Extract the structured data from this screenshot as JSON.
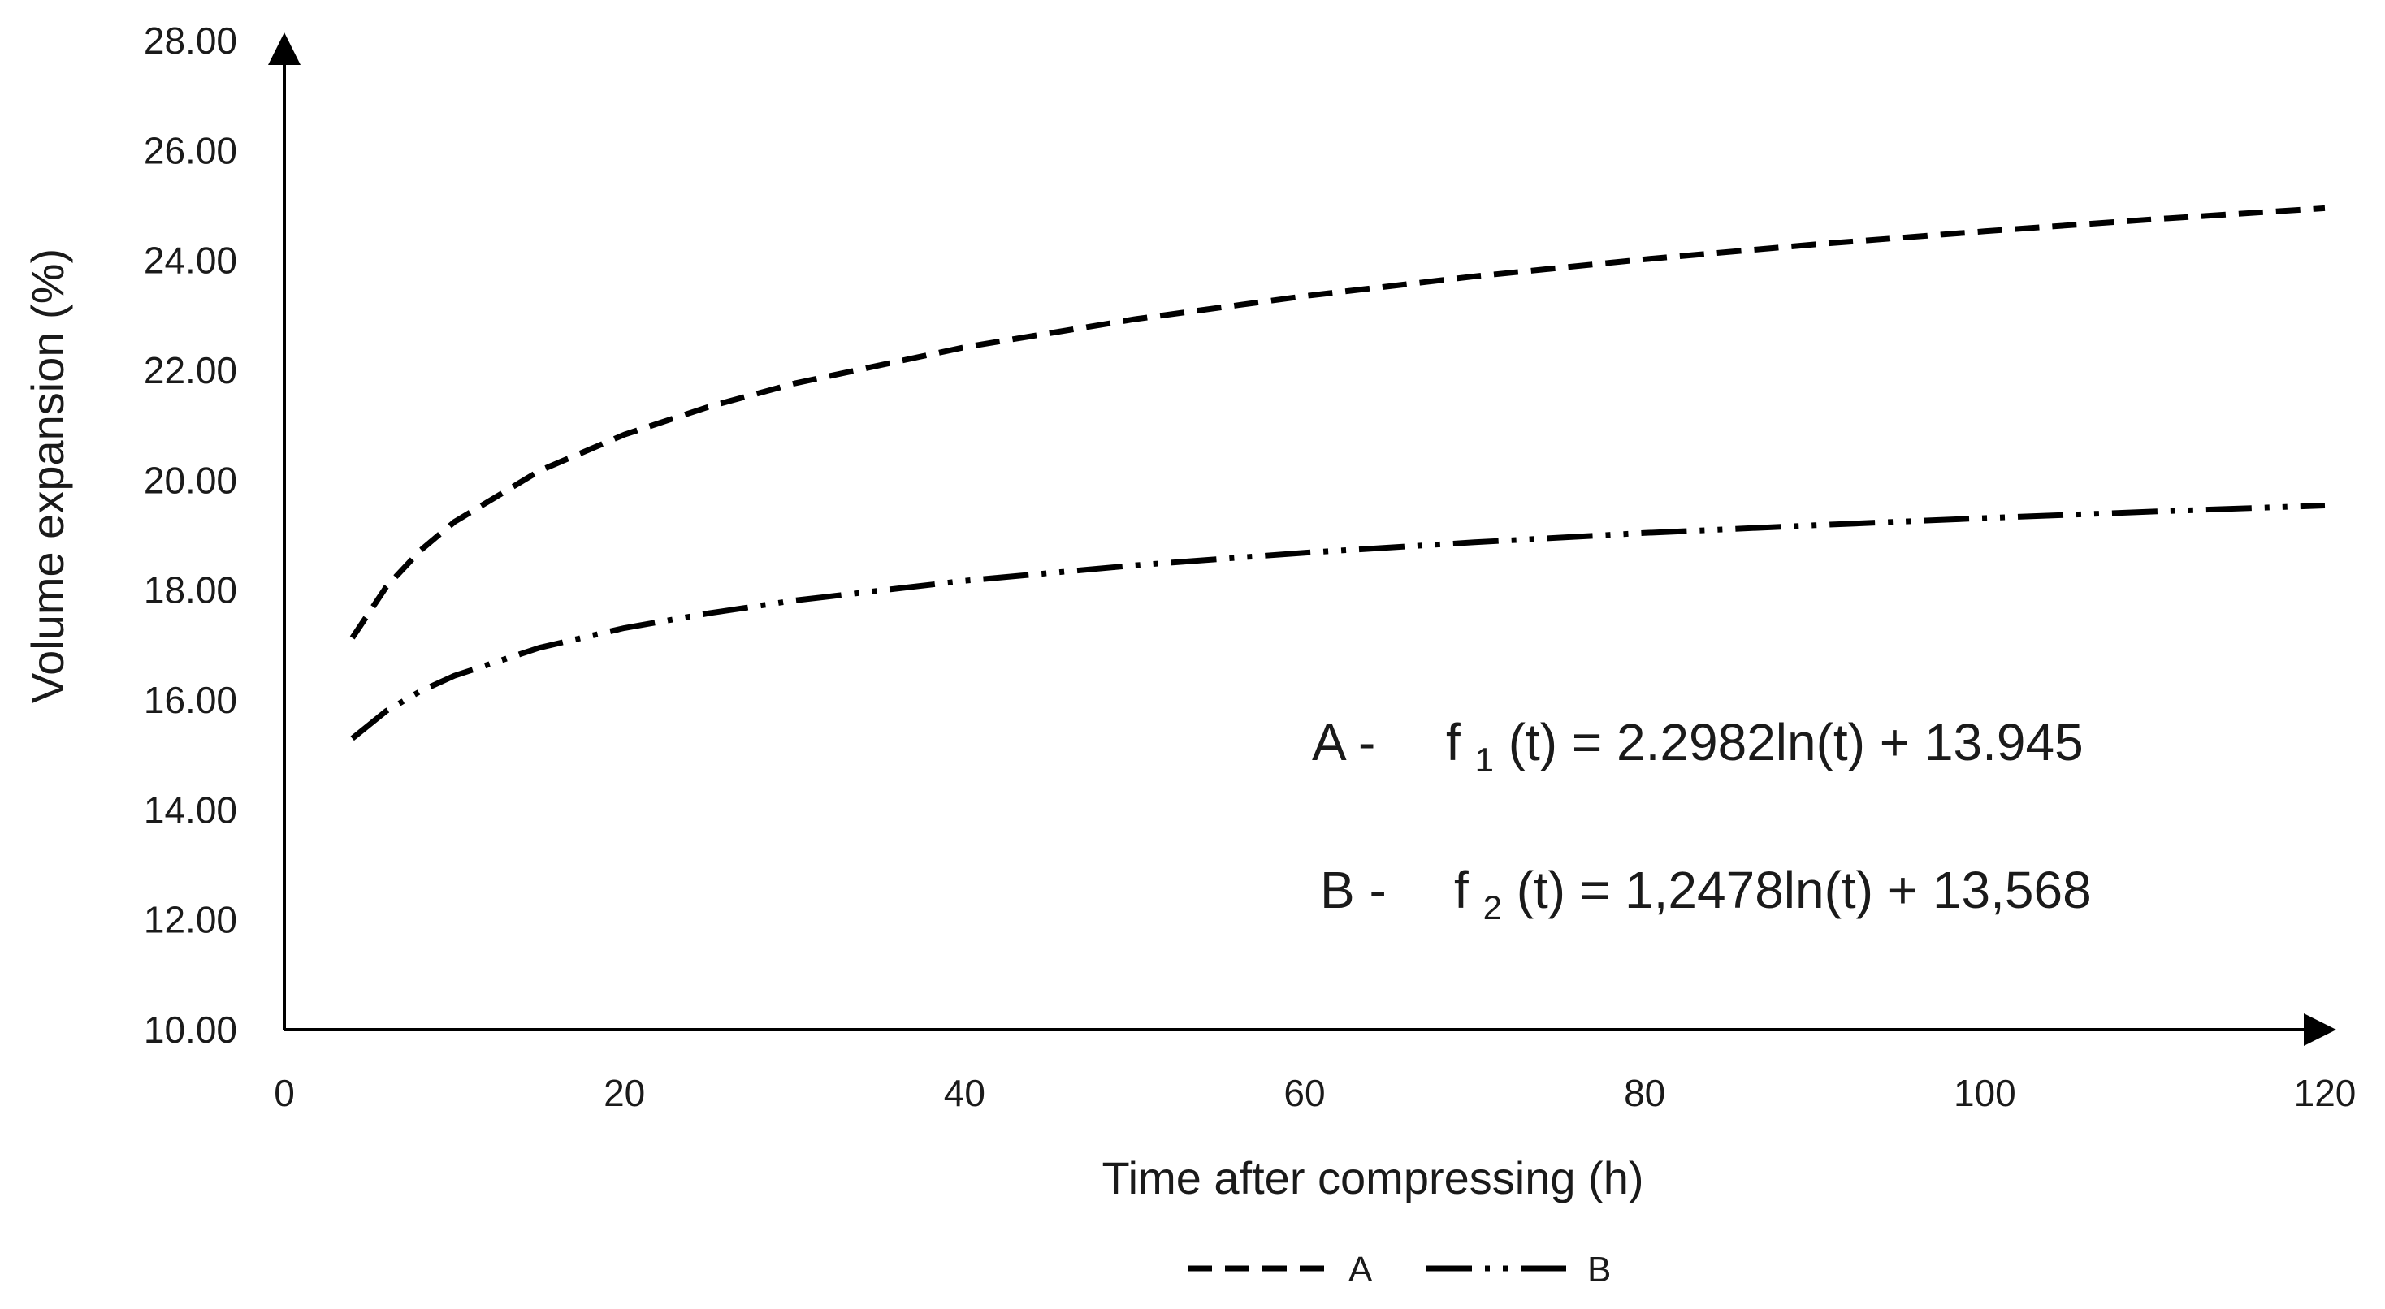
{
  "chart_data": {
    "type": "line",
    "title": "",
    "xlabel": "Time after compressing (h)",
    "ylabel": "Volume expansion (%)",
    "xlim": [
      0,
      120
    ],
    "ylim": [
      10,
      28
    ],
    "x_ticks": [
      0,
      20,
      40,
      60,
      80,
      100,
      120
    ],
    "y_ticks": [
      10,
      12,
      14,
      16,
      18,
      20,
      22,
      24,
      26,
      28
    ],
    "x_tick_labels": [
      "0",
      "20",
      "40",
      "60",
      "80",
      "100",
      "120"
    ],
    "y_tick_labels": [
      "10.00",
      "12.00",
      "14.00",
      "16.00",
      "18.00",
      "20.00",
      "22.00",
      "24.00",
      "26.00",
      "28.00"
    ],
    "grid": false,
    "legend_position": "bottom",
    "series": [
      {
        "name": "A",
        "line_style": "dashed",
        "color": "#000000",
        "x": [
          4,
          6,
          8,
          10,
          15,
          20,
          25,
          30,
          40,
          50,
          60,
          70,
          80,
          90,
          100,
          110,
          120
        ],
        "values": [
          17.13,
          18.06,
          18.72,
          19.24,
          20.17,
          20.83,
          21.34,
          21.76,
          22.42,
          22.93,
          23.35,
          23.71,
          24.02,
          24.29,
          24.53,
          24.75,
          24.95
        ]
      },
      {
        "name": "B",
        "line_style": "dash-dot-dot",
        "color": "#000000",
        "x": [
          4,
          6,
          8,
          10,
          15,
          20,
          25,
          30,
          40,
          50,
          60,
          70,
          80,
          90,
          100,
          110,
          120
        ],
        "values": [
          15.3,
          15.8,
          16.16,
          16.44,
          16.95,
          17.31,
          17.58,
          17.81,
          18.17,
          18.45,
          18.68,
          18.87,
          19.04,
          19.18,
          19.31,
          19.43,
          19.54
        ]
      }
    ],
    "annotations": [
      {
        "label": "A -",
        "func": "f",
        "sub": "1",
        "expr": "(t) = 2.2982ln(t) + 13.945"
      },
      {
        "label": "B -",
        "func": "f",
        "sub": "2",
        "expr": "(t) = 1,2478ln(t) + 13,568"
      }
    ]
  }
}
